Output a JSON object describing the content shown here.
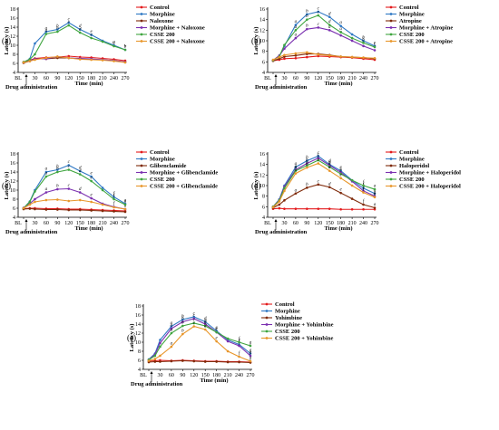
{
  "colors": {
    "control": "#e31a1c",
    "morphine": "#2f78c4",
    "antagonist": "#7f2a0a",
    "morphine_antagonist": "#7a2fb0",
    "csse": "#3fa53f",
    "csse_antagonist": "#e8962a"
  },
  "shared_axes": {
    "ylabel": "Latency (s)",
    "xlabel": "Time (min)",
    "drug_admin_label": "Drug administration",
    "x_ticks": [
      "BL",
      "30",
      "60",
      "90",
      "120",
      "150",
      "180",
      "210",
      "240",
      "270"
    ],
    "y_ticks": [
      "4",
      "6",
      "8",
      "10",
      "12",
      "14",
      "16",
      "18"
    ]
  },
  "chart_data": [
    {
      "panel": "(a)",
      "type": "line",
      "x": [
        "BL",
        "15",
        "30",
        "60",
        "90",
        "120",
        "150",
        "180",
        "210",
        "240",
        "270"
      ],
      "ylim": [
        4,
        18
      ],
      "series": [
        {
          "name": "Control",
          "color_key": "control",
          "values": [
            6.3,
            6.7,
            7.1,
            7.3,
            7.4,
            7.6,
            7.4,
            7.3,
            7.1,
            6.9,
            6.6
          ]
        },
        {
          "name": "Morphine",
          "color_key": "morphine",
          "values": [
            6.2,
            7.0,
            10.4,
            13.0,
            13.5,
            15.0,
            13.5,
            12.3,
            11.0,
            10.0,
            9.0
          ]
        },
        {
          "name": "Naloxone",
          "color_key": "antagonist",
          "values": [
            6.1,
            6.5,
            7.0,
            7.0,
            7.2,
            7.2,
            7.0,
            6.9,
            6.8,
            6.6,
            6.3
          ]
        },
        {
          "name": "Morphine + Naloxone",
          "color_key": "morphine_antagonist",
          "values": [
            6.2,
            6.6,
            7.0,
            7.0,
            7.5,
            7.2,
            7.1,
            7.0,
            6.8,
            6.6,
            6.3
          ]
        },
        {
          "name": "CSSE 200",
          "color_key": "csse",
          "values": [
            6.3,
            6.9,
            8.0,
            12.5,
            13.0,
            14.4,
            12.8,
            11.6,
            10.8,
            9.8,
            9.0
          ]
        },
        {
          "name": "CSSE 200 + Naloxone",
          "color_key": "csse_antagonist",
          "values": [
            6.2,
            6.5,
            6.8,
            7.2,
            7.5,
            7.2,
            6.9,
            6.8,
            6.7,
            6.5,
            6.2
          ]
        }
      ],
      "letters": [
        "a",
        "b",
        "c",
        "d",
        "e"
      ]
    },
    {
      "panel": "(b)",
      "type": "line",
      "x": [
        "BL",
        "15",
        "30",
        "60",
        "90",
        "120",
        "150",
        "180",
        "210",
        "240",
        "270"
      ],
      "ylim": [
        4,
        16
      ],
      "series": [
        {
          "name": "Control",
          "color_key": "control",
          "values": [
            6.2,
            6.4,
            6.6,
            6.7,
            6.9,
            7.1,
            7.0,
            6.9,
            6.8,
            6.6,
            6.4
          ]
        },
        {
          "name": "Morphine",
          "color_key": "morphine",
          "values": [
            6.3,
            7.0,
            9.0,
            13.0,
            15.0,
            15.5,
            14.5,
            12.8,
            11.2,
            10.0,
            9.0
          ]
        },
        {
          "name": "Atropine",
          "color_key": "antagonist",
          "values": [
            6.2,
            6.6,
            7.0,
            7.2,
            7.5,
            7.5,
            7.3,
            7.0,
            6.9,
            6.8,
            6.6
          ]
        },
        {
          "name": "Morphine + Atropine",
          "color_key": "morphine_antagonist",
          "values": [
            6.3,
            7.2,
            8.5,
            10.5,
            12.2,
            12.5,
            12.0,
            11.0,
            10.0,
            9.0,
            8.2
          ]
        },
        {
          "name": "CSSE 200",
          "color_key": "csse",
          "values": [
            6.3,
            7.0,
            9.2,
            12.0,
            14.0,
            14.8,
            13.0,
            11.6,
            10.5,
            9.6,
            8.8
          ]
        },
        {
          "name": "CSSE 200 + Atropine",
          "color_key": "csse_antagonist",
          "values": [
            6.4,
            6.9,
            7.3,
            7.6,
            7.8,
            7.4,
            7.2,
            7.0,
            6.9,
            6.8,
            6.7
          ]
        }
      ],
      "letters": [
        "a",
        "b",
        "c",
        "d"
      ]
    },
    {
      "panel": "(c)",
      "type": "line",
      "x": [
        "BL",
        "15",
        "30",
        "60",
        "90",
        "120",
        "150",
        "180",
        "210",
        "240",
        "270"
      ],
      "ylim": [
        4,
        18
      ],
      "series": [
        {
          "name": "Control",
          "color_key": "control",
          "values": [
            5.9,
            6.0,
            6.0,
            5.9,
            5.9,
            5.8,
            5.8,
            5.7,
            5.6,
            5.5,
            5.4
          ]
        },
        {
          "name": "Morphine",
          "color_key": "morphine",
          "values": [
            6.0,
            7.5,
            10.0,
            14.0,
            14.5,
            15.5,
            14.2,
            13.0,
            10.5,
            8.5,
            7.0
          ]
        },
        {
          "name": "Glibenclamide",
          "color_key": "antagonist",
          "values": [
            5.8,
            5.9,
            5.8,
            5.7,
            5.7,
            5.6,
            5.6,
            5.5,
            5.4,
            5.3,
            5.2
          ]
        },
        {
          "name": "Morphine + Glibenclamide",
          "color_key": "morphine_antagonist",
          "values": [
            6.1,
            7.0,
            8.0,
            9.5,
            10.2,
            10.3,
            9.5,
            8.2,
            7.0,
            6.3,
            5.8
          ]
        },
        {
          "name": "CSSE 200",
          "color_key": "csse",
          "values": [
            6.0,
            7.4,
            9.7,
            13.0,
            14.0,
            14.5,
            13.5,
            12.0,
            10.0,
            8.0,
            6.8
          ]
        },
        {
          "name": "CSSE 200 + Glibenclamide",
          "color_key": "csse_antagonist",
          "values": [
            6.0,
            6.8,
            7.4,
            7.8,
            7.9,
            7.6,
            7.8,
            7.4,
            6.8,
            6.2,
            5.8
          ]
        }
      ],
      "letters": [
        "a",
        "b",
        "c",
        "d",
        "e",
        "f"
      ]
    },
    {
      "panel": "(d)",
      "type": "line",
      "x": [
        "BL",
        "15",
        "30",
        "60",
        "90",
        "120",
        "150",
        "180",
        "210",
        "240",
        "270"
      ],
      "ylim": [
        4,
        16
      ],
      "series": [
        {
          "name": "Control",
          "color_key": "control",
          "values": [
            5.6,
            5.7,
            5.6,
            5.6,
            5.6,
            5.6,
            5.6,
            5.5,
            5.5,
            5.5,
            5.5
          ]
        },
        {
          "name": "Morphine",
          "color_key": "morphine",
          "values": [
            6.0,
            7.4,
            10.0,
            13.5,
            14.7,
            15.6,
            14.0,
            12.8,
            11.0,
            9.5,
            8.5
          ]
        },
        {
          "name": "Haloperidol",
          "color_key": "antagonist",
          "values": [
            5.8,
            6.4,
            7.2,
            8.5,
            9.6,
            10.2,
            9.7,
            8.6,
            7.5,
            6.4,
            5.8
          ]
        },
        {
          "name": "Morphine + Haloperidol",
          "color_key": "morphine_antagonist",
          "values": [
            6.0,
            7.3,
            9.8,
            13.0,
            14.2,
            15.2,
            13.8,
            12.5,
            10.8,
            9.0,
            8.0
          ]
        },
        {
          "name": "CSSE 200",
          "color_key": "csse",
          "values": [
            6.0,
            7.2,
            9.5,
            12.8,
            13.8,
            14.8,
            13.5,
            12.2,
            11.0,
            10.0,
            9.3
          ]
        },
        {
          "name": "CSSE 200 + Haloperidol",
          "color_key": "csse_antagonist",
          "values": [
            5.9,
            7.0,
            9.0,
            12.3,
            13.4,
            14.2,
            12.8,
            11.4,
            10.0,
            8.7,
            7.8
          ]
        }
      ],
      "letters": [
        "a",
        "b",
        "c",
        "d",
        "e",
        "f"
      ]
    },
    {
      "panel": "(e)",
      "type": "line",
      "x": [
        "BL",
        "15",
        "30",
        "60",
        "90",
        "120",
        "150",
        "180",
        "210",
        "240",
        "270"
      ],
      "ylim": [
        4,
        18
      ],
      "series": [
        {
          "name": "Control",
          "color_key": "control",
          "values": [
            5.8,
            5.9,
            6.0,
            5.9,
            6.0,
            5.9,
            5.8,
            5.8,
            5.7,
            5.7,
            5.6
          ]
        },
        {
          "name": "Morphine",
          "color_key": "morphine",
          "values": [
            6.2,
            7.5,
            10.5,
            13.5,
            15.0,
            15.6,
            14.5,
            12.5,
            10.5,
            9.5,
            7.5
          ]
        },
        {
          "name": "Yohimbine",
          "color_key": "antagonist",
          "values": [
            5.6,
            5.7,
            5.7,
            5.8,
            5.9,
            5.8,
            5.7,
            5.7,
            5.6,
            5.6,
            5.5
          ]
        },
        {
          "name": "Morphine + Yohimbine",
          "color_key": "morphine_antagonist",
          "values": [
            6.1,
            7.3,
            9.8,
            13.0,
            14.5,
            15.2,
            14.0,
            12.2,
            10.2,
            9.2,
            7.0
          ]
        },
        {
          "name": "CSSE 200",
          "color_key": "csse",
          "values": [
            6.1,
            7.0,
            9.0,
            12.0,
            13.6,
            14.2,
            13.6,
            12.2,
            10.8,
            10.0,
            9.2
          ]
        },
        {
          "name": "CSSE 200 + Yohimbine",
          "color_key": "csse_antagonist",
          "values": [
            5.9,
            6.3,
            7.0,
            9.0,
            11.8,
            13.5,
            12.8,
            10.2,
            8.0,
            6.8,
            5.8
          ]
        }
      ],
      "letters": [
        "a",
        "b",
        "c",
        "d",
        "e",
        "f",
        "g",
        "h"
      ]
    }
  ]
}
